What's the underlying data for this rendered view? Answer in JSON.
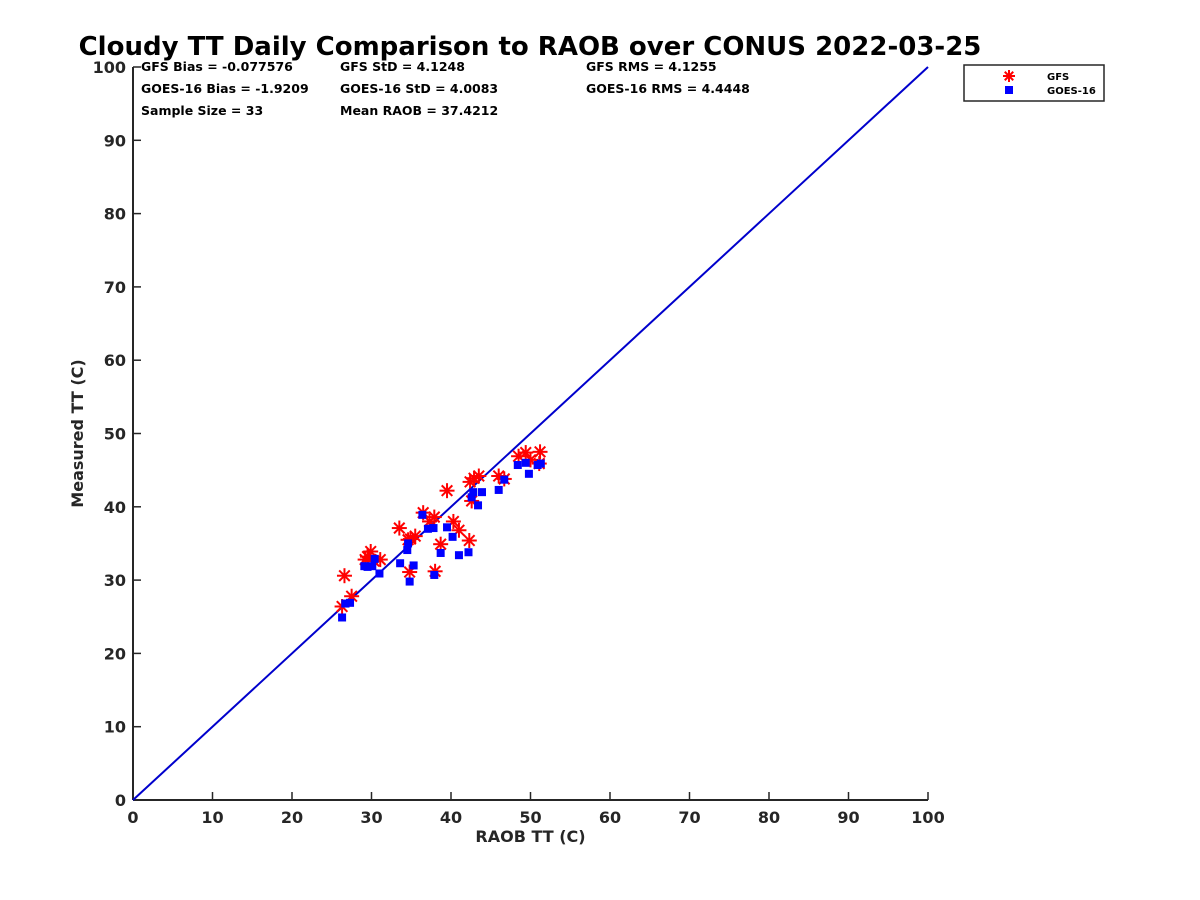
{
  "chart_data": {
    "type": "scatter",
    "title": "Cloudy TT Daily Comparison to RAOB over CONUS 2022-03-25",
    "xlabel": "RAOB TT (C)",
    "ylabel": "Measured TT (C)",
    "xlim": [
      0,
      100
    ],
    "ylim": [
      0,
      100
    ],
    "xticks": [
      "0",
      "10",
      "20",
      "30",
      "40",
      "50",
      "60",
      "70",
      "80",
      "90",
      "100"
    ],
    "yticks": [
      "0",
      "10",
      "20",
      "30",
      "40",
      "50",
      "60",
      "70",
      "80",
      "90",
      "100"
    ],
    "grid": false,
    "legend_position": "outside-top-right",
    "reference_line": {
      "type": "1:1",
      "from": [
        0,
        0
      ],
      "to": [
        100,
        100
      ],
      "color": "#0000cc"
    },
    "stats": [
      [
        "GFS Bias = -0.077576",
        "GFS StD = 4.1248",
        "GFS RMS = 4.1255"
      ],
      [
        "GOES-16 Bias = -1.9209",
        "GOES-16 StD = 4.0083",
        "GOES-16 RMS = 4.4448"
      ],
      [
        "Sample Size = 33",
        "Mean RAOB = 37.4212",
        ""
      ]
    ],
    "series": [
      {
        "name": "GFS",
        "marker": "asterisk",
        "color": "#ff0000",
        "points": [
          [
            26.3,
            26.4
          ],
          [
            26.6,
            30.6
          ],
          [
            27.5,
            27.8
          ],
          [
            29.2,
            32.8
          ],
          [
            29.5,
            33.2
          ],
          [
            29.9,
            33.9
          ],
          [
            30.3,
            32.6
          ],
          [
            31.1,
            32.8
          ],
          [
            33.5,
            37.1
          ],
          [
            34.6,
            35.5
          ],
          [
            34.8,
            31.1
          ],
          [
            34.9,
            35.6
          ],
          [
            35.5,
            36.0
          ],
          [
            36.5,
            39.2
          ],
          [
            37.3,
            38.0
          ],
          [
            37.9,
            38.6
          ],
          [
            38.0,
            31.2
          ],
          [
            38.7,
            34.9
          ],
          [
            39.5,
            42.2
          ],
          [
            40.3,
            38.0
          ],
          [
            41.0,
            36.8
          ],
          [
            42.3,
            35.4
          ],
          [
            42.4,
            43.4
          ],
          [
            42.6,
            40.8
          ],
          [
            42.9,
            43.9
          ],
          [
            43.5,
            44.2
          ],
          [
            46.0,
            44.2
          ],
          [
            46.7,
            43.8
          ],
          [
            48.5,
            46.9
          ],
          [
            49.4,
            47.4
          ],
          [
            50.0,
            46.4
          ],
          [
            51.1,
            45.9
          ],
          [
            51.2,
            47.5
          ]
        ]
      },
      {
        "name": "GOES-16",
        "marker": "square",
        "color": "#0000ff",
        "points": [
          [
            26.3,
            24.9
          ],
          [
            26.7,
            26.8
          ],
          [
            27.3,
            26.9
          ],
          [
            29.1,
            31.9
          ],
          [
            29.5,
            31.8
          ],
          [
            30.1,
            31.9
          ],
          [
            30.4,
            32.9
          ],
          [
            31.0,
            30.9
          ],
          [
            33.6,
            32.3
          ],
          [
            34.5,
            34.1
          ],
          [
            34.6,
            35.0
          ],
          [
            34.8,
            29.8
          ],
          [
            35.3,
            32.0
          ],
          [
            36.4,
            38.9
          ],
          [
            37.1,
            37.0
          ],
          [
            37.8,
            37.1
          ],
          [
            37.9,
            30.7
          ],
          [
            38.7,
            33.7
          ],
          [
            39.5,
            37.2
          ],
          [
            40.2,
            35.9
          ],
          [
            41.0,
            33.4
          ],
          [
            42.2,
            33.8
          ],
          [
            42.6,
            41.3
          ],
          [
            42.8,
            42.0
          ],
          [
            43.4,
            40.2
          ],
          [
            43.9,
            42.0
          ],
          [
            46.0,
            42.3
          ],
          [
            46.7,
            43.7
          ],
          [
            48.4,
            45.7
          ],
          [
            49.4,
            46.0
          ],
          [
            49.8,
            44.5
          ],
          [
            50.9,
            45.7
          ],
          [
            51.3,
            45.9
          ]
        ]
      }
    ]
  }
}
